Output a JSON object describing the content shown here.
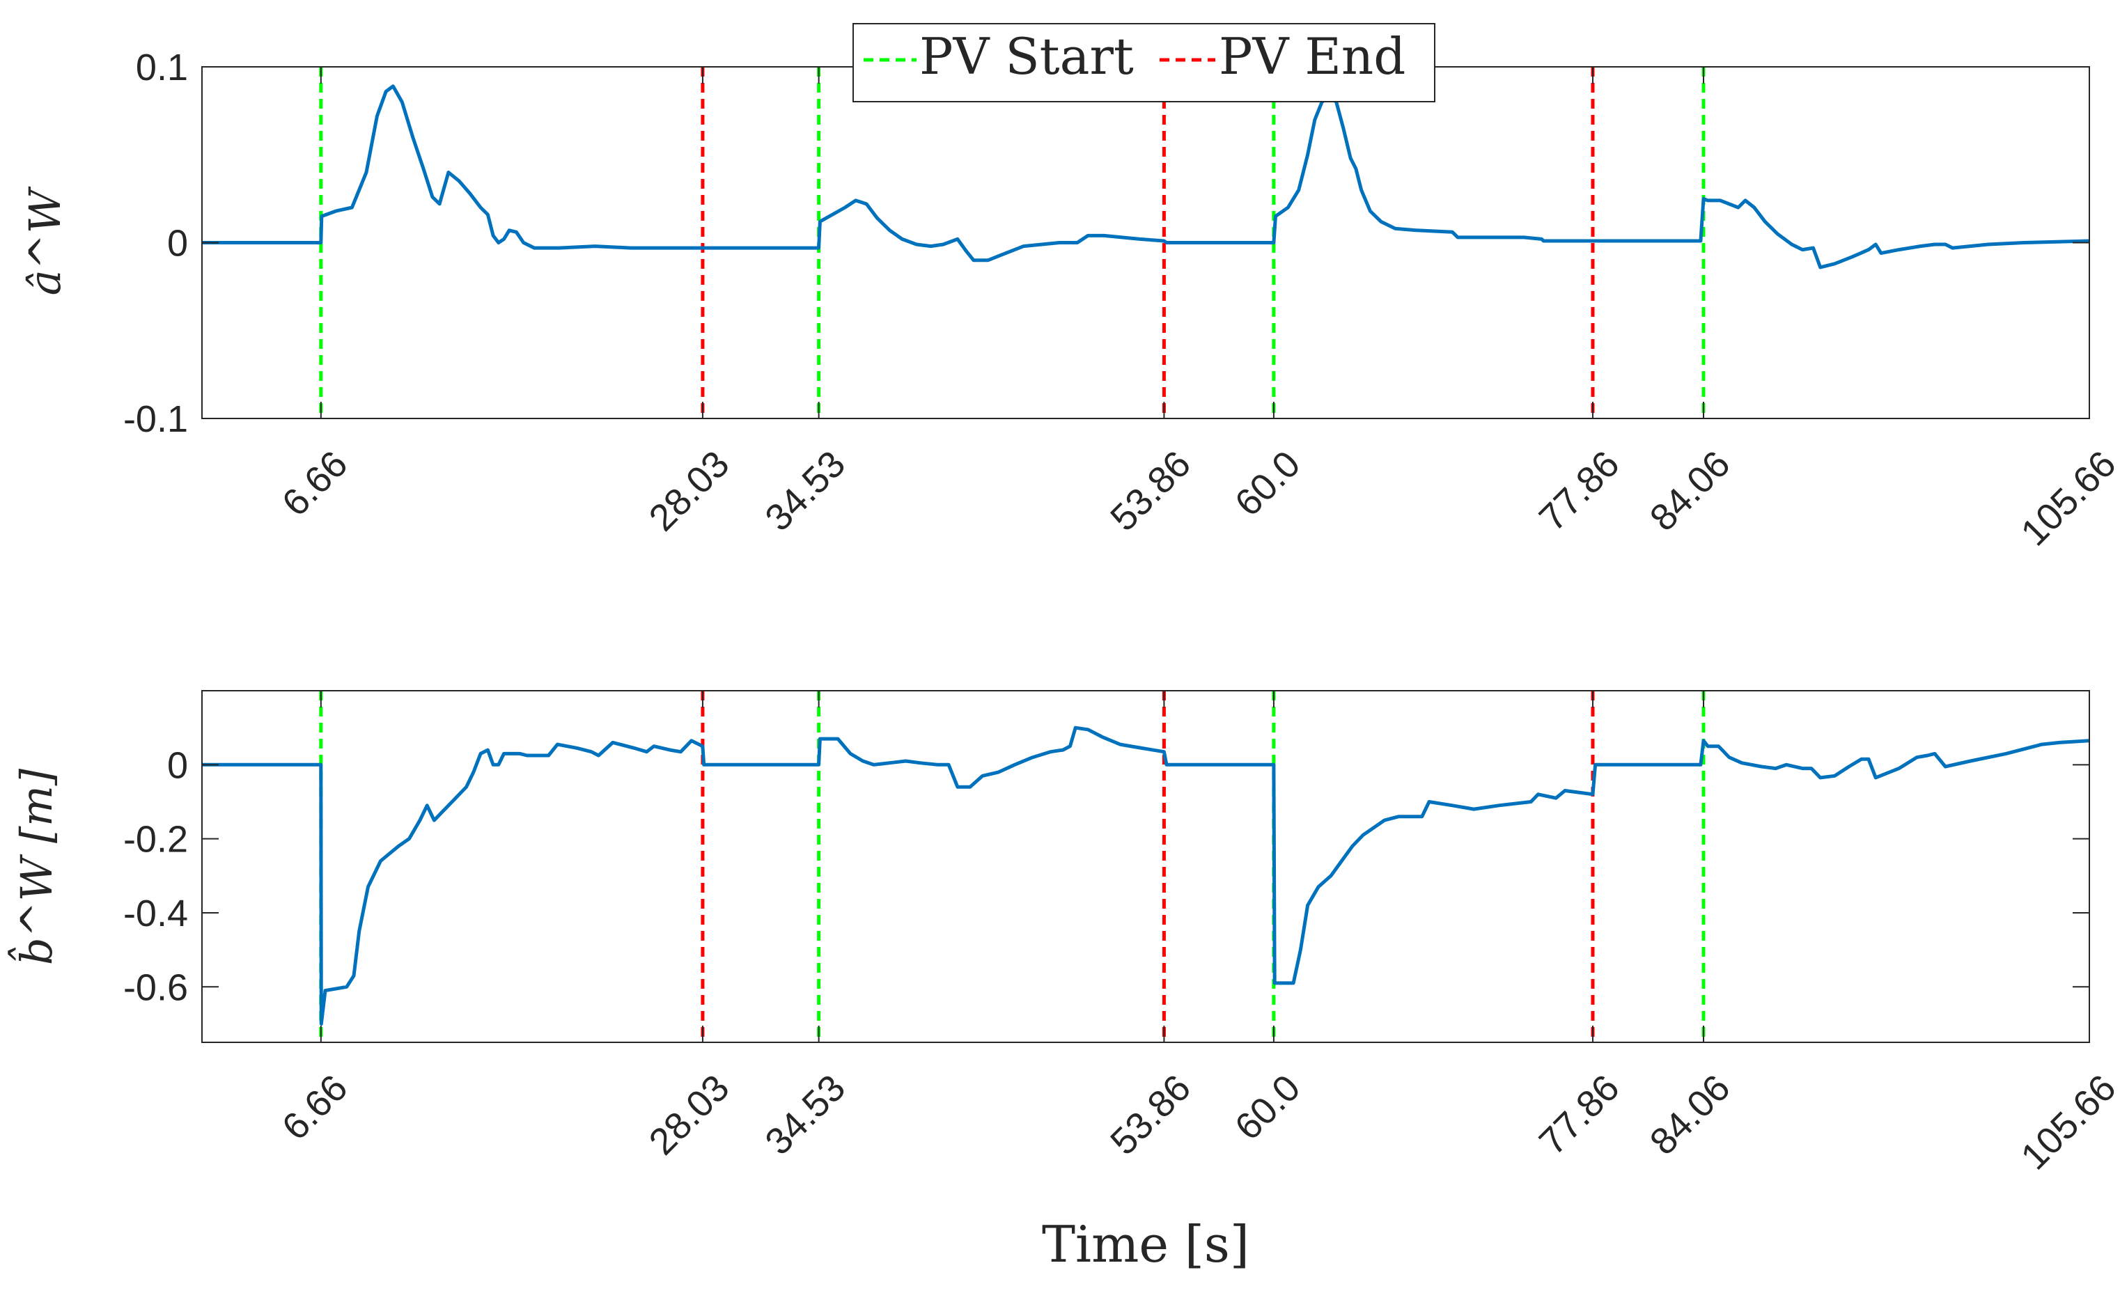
{
  "chart_data": [
    {
      "type": "line",
      "ylabel": "â^W",
      "ylim": [
        -0.1,
        0.1
      ],
      "yticks": [
        -0.1,
        0,
        0.1
      ],
      "ytick_labels": [
        "-0.1",
        "0",
        "0.1"
      ],
      "xlim": [
        0,
        105.66
      ],
      "xticks": [
        6.66,
        28.03,
        34.53,
        53.86,
        60.0,
        77.86,
        84.06,
        105.66
      ],
      "xtick_labels": [
        "6.66",
        "28.03",
        "34.53",
        "53.86",
        "60.0",
        "77.86",
        "84.06",
        "105.66"
      ],
      "grid": false,
      "legend": {
        "placement": "top-center",
        "entries": [
          "PV Start",
          "PV End"
        ]
      },
      "series": [
        {
          "color": "#0072BD",
          "points": [
            [
              0,
              0.0
            ],
            [
              6.6,
              0.0
            ],
            [
              6.66,
              0.0
            ],
            [
              6.7,
              0.015
            ],
            [
              7.5,
              0.018
            ],
            [
              8.4,
              0.02
            ],
            [
              9.2,
              0.04
            ],
            [
              9.8,
              0.072
            ],
            [
              10.3,
              0.086
            ],
            [
              10.7,
              0.089
            ],
            [
              11.2,
              0.08
            ],
            [
              11.8,
              0.06
            ],
            [
              12.4,
              0.042
            ],
            [
              12.9,
              0.026
            ],
            [
              13.3,
              0.022
            ],
            [
              13.8,
              0.04
            ],
            [
              14.4,
              0.035
            ],
            [
              15.0,
              0.028
            ],
            [
              15.6,
              0.02
            ],
            [
              16.0,
              0.016
            ],
            [
              16.3,
              0.004
            ],
            [
              16.6,
              0.0
            ],
            [
              16.9,
              0.002
            ],
            [
              17.2,
              0.007
            ],
            [
              17.6,
              0.006
            ],
            [
              18.0,
              0.0
            ],
            [
              18.6,
              -0.003
            ],
            [
              20.0,
              -0.003
            ],
            [
              22.0,
              -0.002
            ],
            [
              24.0,
              -0.003
            ],
            [
              26.0,
              -0.003
            ],
            [
              28.03,
              -0.003
            ],
            [
              28.1,
              -0.003
            ],
            [
              34.4,
              -0.003
            ],
            [
              34.53,
              -0.003
            ],
            [
              34.6,
              0.012
            ],
            [
              35.3,
              0.016
            ],
            [
              36.0,
              0.02
            ],
            [
              36.6,
              0.024
            ],
            [
              37.2,
              0.022
            ],
            [
              37.8,
              0.014
            ],
            [
              38.5,
              0.007
            ],
            [
              39.2,
              0.002
            ],
            [
              40.0,
              -0.001
            ],
            [
              40.8,
              -0.002
            ],
            [
              41.5,
              -0.001
            ],
            [
              42.3,
              0.002
            ],
            [
              42.8,
              -0.005
            ],
            [
              43.2,
              -0.01
            ],
            [
              44.0,
              -0.01
            ],
            [
              45.0,
              -0.006
            ],
            [
              46.0,
              -0.002
            ],
            [
              48.0,
              0.0
            ],
            [
              49.0,
              0.0
            ],
            [
              49.6,
              0.004
            ],
            [
              50.5,
              0.004
            ],
            [
              51.5,
              0.003
            ],
            [
              52.5,
              0.002
            ],
            [
              53.86,
              0.001
            ],
            [
              54.0,
              0.0
            ],
            [
              59.6,
              0.0
            ],
            [
              60.0,
              0.0
            ],
            [
              60.1,
              0.015
            ],
            [
              60.8,
              0.02
            ],
            [
              61.4,
              0.03
            ],
            [
              61.9,
              0.05
            ],
            [
              62.3,
              0.07
            ],
            [
              62.7,
              0.08
            ],
            [
              63.1,
              0.083
            ],
            [
              63.5,
              0.08
            ],
            [
              63.9,
              0.065
            ],
            [
              64.3,
              0.048
            ],
            [
              64.6,
              0.042
            ],
            [
              64.9,
              0.03
            ],
            [
              65.4,
              0.018
            ],
            [
              66.0,
              0.012
            ],
            [
              66.8,
              0.008
            ],
            [
              68.0,
              0.007
            ],
            [
              70.0,
              0.006
            ],
            [
              70.3,
              0.003
            ],
            [
              72.0,
              0.003
            ],
            [
              74.0,
              0.003
            ],
            [
              75.0,
              0.002
            ],
            [
              75.1,
              0.001
            ],
            [
              77.86,
              0.001
            ],
            [
              78.0,
              0.001
            ],
            [
              83.9,
              0.001
            ],
            [
              84.06,
              0.025
            ],
            [
              84.3,
              0.024
            ],
            [
              85.0,
              0.024
            ],
            [
              86.0,
              0.02
            ],
            [
              86.4,
              0.024
            ],
            [
              86.9,
              0.02
            ],
            [
              87.5,
              0.012
            ],
            [
              88.2,
              0.005
            ],
            [
              89.0,
              -0.001
            ],
            [
              89.6,
              -0.004
            ],
            [
              90.2,
              -0.003
            ],
            [
              90.6,
              -0.014
            ],
            [
              91.4,
              -0.012
            ],
            [
              92.4,
              -0.008
            ],
            [
              93.3,
              -0.004
            ],
            [
              93.7,
              -0.001
            ],
            [
              94.0,
              -0.006
            ],
            [
              95.0,
              -0.004
            ],
            [
              96.2,
              -0.002
            ],
            [
              97.0,
              -0.001
            ],
            [
              97.6,
              -0.001
            ],
            [
              98.0,
              -0.003
            ],
            [
              100.0,
              -0.001
            ],
            [
              102.0,
              0.0
            ],
            [
              105.66,
              0.001
            ]
          ]
        }
      ],
      "vlines": [
        {
          "x": 6.66,
          "color": "#00FF00",
          "label": "PV Start"
        },
        {
          "x": 28.03,
          "color": "#FF0000",
          "label": "PV End"
        },
        {
          "x": 34.53,
          "color": "#00FF00",
          "label": "PV Start"
        },
        {
          "x": 53.86,
          "color": "#FF0000",
          "label": "PV End"
        },
        {
          "x": 60.0,
          "color": "#00FF00",
          "label": "PV Start"
        },
        {
          "x": 77.86,
          "color": "#FF0000",
          "label": "PV End"
        },
        {
          "x": 84.06,
          "color": "#00FF00",
          "label": "PV Start"
        }
      ]
    },
    {
      "type": "line",
      "ylabel": "b̂^W [m]",
      "ylim": [
        -0.75,
        0.2
      ],
      "yticks": [
        -0.6,
        -0.4,
        -0.2,
        0
      ],
      "ytick_labels": [
        "-0.6",
        "-0.4",
        "-0.2",
        "0"
      ],
      "xlim": [
        0,
        105.66
      ],
      "xticks": [
        6.66,
        28.03,
        34.53,
        53.86,
        60.0,
        77.86,
        84.06,
        105.66
      ],
      "xtick_labels": [
        "6.66",
        "28.03",
        "34.53",
        "53.86",
        "60.0",
        "77.86",
        "84.06",
        "105.66"
      ],
      "xlabel": "Time [s]",
      "grid": false,
      "series": [
        {
          "color": "#0072BD",
          "points": [
            [
              0,
              0.0
            ],
            [
              6.6,
              0.0
            ],
            [
              6.66,
              0.0
            ],
            [
              6.68,
              -0.7
            ],
            [
              6.9,
              -0.61
            ],
            [
              8.1,
              -0.6
            ],
            [
              8.5,
              -0.57
            ],
            [
              8.8,
              -0.45
            ],
            [
              9.3,
              -0.33
            ],
            [
              10.0,
              -0.26
            ],
            [
              11.0,
              -0.22
            ],
            [
              11.6,
              -0.2
            ],
            [
              12.2,
              -0.15
            ],
            [
              12.6,
              -0.11
            ],
            [
              13.0,
              -0.15
            ],
            [
              13.6,
              -0.12
            ],
            [
              14.2,
              -0.09
            ],
            [
              14.8,
              -0.06
            ],
            [
              15.2,
              -0.02
            ],
            [
              15.6,
              0.03
            ],
            [
              16.0,
              0.04
            ],
            [
              16.3,
              0.0
            ],
            [
              16.6,
              0.0
            ],
            [
              16.9,
              0.03
            ],
            [
              17.8,
              0.03
            ],
            [
              18.2,
              0.025
            ],
            [
              19.4,
              0.025
            ],
            [
              19.9,
              0.055
            ],
            [
              21.0,
              0.045
            ],
            [
              21.8,
              0.035
            ],
            [
              22.2,
              0.025
            ],
            [
              23.0,
              0.06
            ],
            [
              24.2,
              0.045
            ],
            [
              24.9,
              0.035
            ],
            [
              25.3,
              0.05
            ],
            [
              26.2,
              0.04
            ],
            [
              26.8,
              0.035
            ],
            [
              27.4,
              0.065
            ],
            [
              28.03,
              0.05
            ],
            [
              28.1,
              0.0
            ],
            [
              34.4,
              0.0
            ],
            [
              34.53,
              0.0
            ],
            [
              34.6,
              0.07
            ],
            [
              35.6,
              0.07
            ],
            [
              36.3,
              0.03
            ],
            [
              37.0,
              0.01
            ],
            [
              37.6,
              0.0
            ],
            [
              38.5,
              0.005
            ],
            [
              39.4,
              0.01
            ],
            [
              40.2,
              0.005
            ],
            [
              41.2,
              0.0
            ],
            [
              41.8,
              0.0
            ],
            [
              42.3,
              -0.06
            ],
            [
              43.0,
              -0.06
            ],
            [
              43.7,
              -0.03
            ],
            [
              44.6,
              -0.02
            ],
            [
              45.5,
              0.0
            ],
            [
              46.5,
              0.02
            ],
            [
              47.5,
              0.035
            ],
            [
              48.2,
              0.04
            ],
            [
              48.6,
              0.05
            ],
            [
              48.9,
              0.1
            ],
            [
              49.6,
              0.095
            ],
            [
              50.4,
              0.075
            ],
            [
              51.4,
              0.055
            ],
            [
              52.6,
              0.045
            ],
            [
              53.86,
              0.035
            ],
            [
              54.0,
              0.0
            ],
            [
              59.9,
              0.0
            ],
            [
              60.0,
              0.0
            ],
            [
              60.05,
              -0.59
            ],
            [
              61.1,
              -0.59
            ],
            [
              61.5,
              -0.5
            ],
            [
              61.9,
              -0.38
            ],
            [
              62.5,
              -0.33
            ],
            [
              63.2,
              -0.3
            ],
            [
              63.8,
              -0.26
            ],
            [
              64.4,
              -0.22
            ],
            [
              65.0,
              -0.19
            ],
            [
              65.6,
              -0.17
            ],
            [
              66.2,
              -0.15
            ],
            [
              67.0,
              -0.14
            ],
            [
              68.3,
              -0.14
            ],
            [
              68.7,
              -0.1
            ],
            [
              70.0,
              -0.11
            ],
            [
              71.2,
              -0.12
            ],
            [
              72.6,
              -0.11
            ],
            [
              74.4,
              -0.1
            ],
            [
              74.8,
              -0.08
            ],
            [
              75.8,
              -0.09
            ],
            [
              76.3,
              -0.07
            ],
            [
              77.86,
              -0.08
            ],
            [
              78.0,
              0.0
            ],
            [
              83.9,
              0.0
            ],
            [
              84.06,
              0.065
            ],
            [
              84.3,
              0.05
            ],
            [
              84.9,
              0.05
            ],
            [
              85.5,
              0.02
            ],
            [
              86.2,
              0.005
            ],
            [
              87.3,
              -0.005
            ],
            [
              88.1,
              -0.01
            ],
            [
              88.7,
              0.0
            ],
            [
              89.6,
              -0.01
            ],
            [
              90.1,
              -0.01
            ],
            [
              90.6,
              -0.035
            ],
            [
              91.4,
              -0.03
            ],
            [
              92.2,
              -0.005
            ],
            [
              92.9,
              0.015
            ],
            [
              93.3,
              0.015
            ],
            [
              93.7,
              -0.035
            ],
            [
              95.0,
              -0.01
            ],
            [
              96.0,
              0.02
            ],
            [
              96.6,
              0.025
            ],
            [
              97.0,
              0.03
            ],
            [
              97.6,
              -0.005
            ],
            [
              99.0,
              0.01
            ],
            [
              101.0,
              0.03
            ],
            [
              103.0,
              0.055
            ],
            [
              104.0,
              0.06
            ],
            [
              105.66,
              0.065
            ]
          ]
        }
      ],
      "vlines": [
        {
          "x": 6.66,
          "color": "#00FF00",
          "label": "PV Start"
        },
        {
          "x": 28.03,
          "color": "#FF0000",
          "label": "PV End"
        },
        {
          "x": 34.53,
          "color": "#00FF00",
          "label": "PV Start"
        },
        {
          "x": 53.86,
          "color": "#FF0000",
          "label": "PV End"
        },
        {
          "x": 60.0,
          "color": "#00FF00",
          "label": "PV Start"
        },
        {
          "x": 77.86,
          "color": "#FF0000",
          "label": "PV End"
        },
        {
          "x": 84.06,
          "color": "#00FF00",
          "label": "PV Start"
        }
      ]
    }
  ]
}
